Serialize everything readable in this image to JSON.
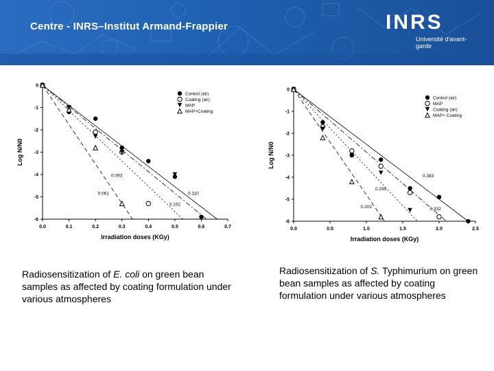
{
  "header": {
    "title": "Centre - INRS–Institut Armand-Frappier",
    "logo_text": "INRS",
    "logo_tagline": "Université d'avant-garde"
  },
  "captions": {
    "left": {
      "pre": "Radiosensitization of ",
      "species": "E. coli",
      "post": " on green bean samples as affected by coating formulation under various atmospheres"
    },
    "right": {
      "pre": "Radiosensitization of ",
      "species": "S.",
      "post": " Typhimurium on green bean samples as affected by coating formulation under various atmospheres"
    }
  },
  "chart_data": [
    {
      "type": "scatter",
      "xlabel": "Irradiation doses (KGy)",
      "ylabel": "Log N/N0",
      "xlim": [
        0,
        0.7
      ],
      "ylim": [
        -6,
        0
      ],
      "xticks": [
        "0.0",
        "0.1",
        "0.2",
        "0.3",
        "0.4",
        "0.5",
        "0.6",
        "0.7"
      ],
      "yticks": [
        "0",
        "-1",
        "-2",
        "-3",
        "-4",
        "-5",
        "-6"
      ],
      "legend_position": "top-right",
      "series": [
        {
          "name": "Control (air)",
          "marker": "circle-filled",
          "x": [
            0,
            0.1,
            0.2,
            0.3,
            0.4,
            0.5,
            0.6
          ],
          "y": [
            0,
            -1.2,
            -1.5,
            -2.8,
            -3.4,
            -4.1,
            -5.9
          ]
        },
        {
          "name": "Coating (air)",
          "marker": "circle-open",
          "x": [
            0,
            0.1,
            0.2,
            0.3,
            0.4
          ],
          "y": [
            0,
            -1.0,
            -2.1,
            -3.0,
            -5.3
          ]
        },
        {
          "name": "MAP",
          "marker": "triangle-down",
          "x": [
            0,
            0.1,
            0.2,
            0.3,
            0.5
          ],
          "y": [
            0,
            -1.0,
            -2.3,
            -3.0,
            -4.0
          ]
        },
        {
          "name": "MAP+Coating",
          "marker": "triangle-up",
          "x": [
            0,
            0.1,
            0.2,
            0.3
          ],
          "y": [
            0,
            -1.1,
            -2.8,
            -5.3
          ]
        }
      ],
      "fit_lines": [
        {
          "x0": 0,
          "y0": 0,
          "x1": 0.66,
          "y1": -6,
          "style": "solid"
        },
        {
          "x0": 0,
          "y0": 0,
          "x1": 0.62,
          "y1": -6,
          "style": "dash-dot"
        },
        {
          "x0": 0,
          "y0": 0,
          "x1": 0.53,
          "y1": -6,
          "style": "dotted"
        },
        {
          "x0": 0,
          "y0": 0,
          "x1": 0.34,
          "y1": -6,
          "style": "dashed"
        }
      ],
      "annotations": [
        {
          "text": "0.093",
          "x": 0.28,
          "y": -4.1
        },
        {
          "text": "0.110",
          "x": 0.57,
          "y": -4.9
        },
        {
          "text": "0.061",
          "x": 0.23,
          "y": -4.9
        },
        {
          "text": "0.102",
          "x": 0.5,
          "y": -5.4
        }
      ]
    },
    {
      "type": "scatter",
      "xlabel": "Irradiation doses (KGy)",
      "ylabel": "Log N/N0",
      "xlim": [
        0,
        2.5
      ],
      "ylim": [
        -6,
        0
      ],
      "xticks": [
        "0.0",
        "0.5",
        "1.0",
        "1.5",
        "2.0",
        "2.5"
      ],
      "yticks": [
        "0",
        "-1",
        "-2",
        "-3",
        "-4",
        "-5",
        "-6"
      ],
      "legend_position": "top-right",
      "series": [
        {
          "name": "Control (air)",
          "marker": "circle-filled",
          "x": [
            0,
            0.4,
            0.8,
            1.2,
            1.6,
            2.0,
            2.4
          ],
          "y": [
            0,
            -1.5,
            -3.0,
            -3.2,
            -4.5,
            -4.9,
            -6.0
          ]
        },
        {
          "name": "MAP",
          "marker": "circle-open",
          "x": [
            0,
            0.4,
            0.8,
            1.2,
            1.6,
            2.0
          ],
          "y": [
            0,
            -1.7,
            -2.8,
            -3.5,
            -4.7,
            -5.8
          ]
        },
        {
          "name": "Coating (air)",
          "marker": "triangle-down",
          "x": [
            0,
            0.4,
            0.8,
            1.2,
            1.6
          ],
          "y": [
            0,
            -1.8,
            -3.0,
            -3.8,
            -5.5
          ]
        },
        {
          "name": "MAP+ Coating",
          "marker": "triangle-up",
          "x": [
            0,
            0.4,
            0.8,
            1.2
          ],
          "y": [
            0,
            -2.2,
            -4.2,
            -5.8
          ]
        }
      ],
      "fit_lines": [
        {
          "x0": 0,
          "y0": 0,
          "x1": 2.4,
          "y1": -6,
          "style": "solid"
        },
        {
          "x0": 0,
          "y0": 0,
          "x1": 2.1,
          "y1": -6,
          "style": "dash-dot"
        },
        {
          "x0": 0,
          "y0": 0,
          "x1": 1.7,
          "y1": -6,
          "style": "dotted"
        },
        {
          "x0": 0,
          "y0": 0,
          "x1": 1.25,
          "y1": -6,
          "style": "dashed"
        }
      ],
      "annotations": [
        {
          "text": "0.383",
          "x": 1.85,
          "y": -4.0
        },
        {
          "text": "0.295",
          "x": 1.2,
          "y": -4.6
        },
        {
          "text": "0.202",
          "x": 1.0,
          "y": -5.4
        },
        {
          "text": "0.332",
          "x": 1.95,
          "y": -5.5
        }
      ]
    }
  ]
}
